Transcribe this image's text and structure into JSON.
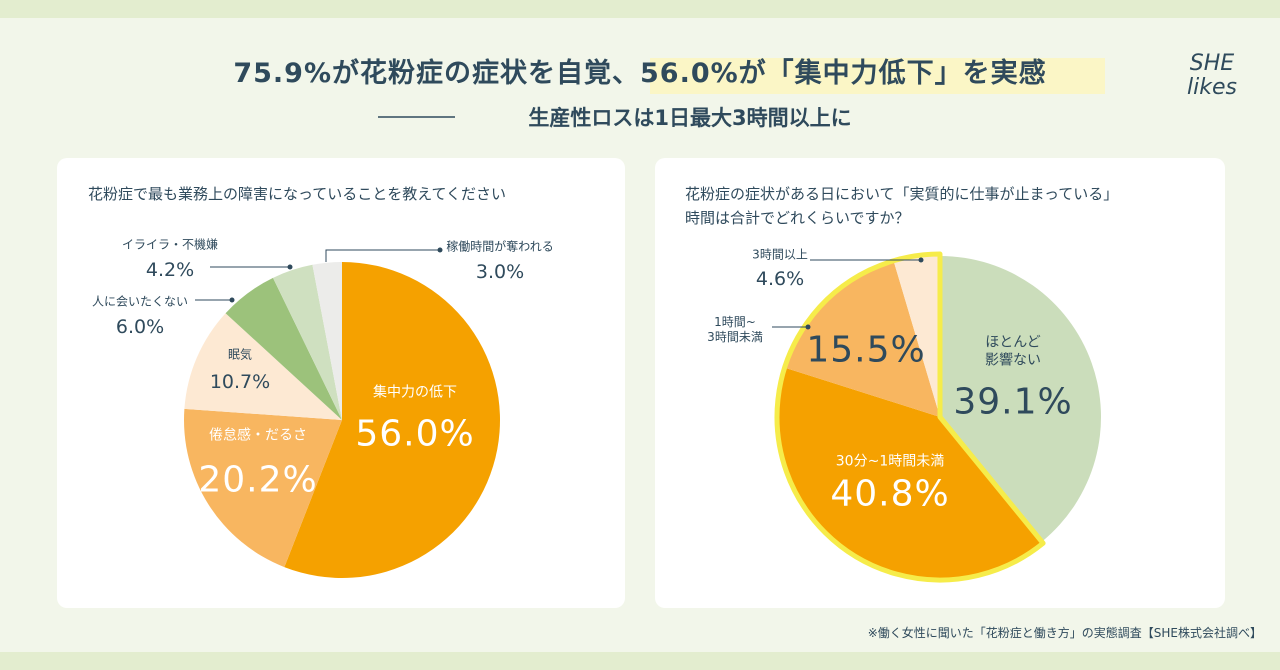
{
  "header": {
    "title": "75.9%が花粉症の症状を自覚、56.0%が「集中力低下」を実感",
    "subtitle": "生産性ロスは1日最大3時間以上に",
    "logo": "SHE\nlikes"
  },
  "chart_data": [
    {
      "type": "pie",
      "title": "花粉症で最も業務上の障害になっていることを教えてください",
      "categories": [
        "集中力の低下",
        "倦怠感・だるさ",
        "眠気",
        "人に会いたくない",
        "イライラ・不機嫌",
        "稼働時間が奪われる"
      ],
      "values": [
        56.0,
        20.2,
        10.7,
        6.0,
        4.2,
        3.0
      ],
      "value_labels": [
        "56.0%",
        "20.2%",
        "10.7%",
        "6.0%",
        "4.2%",
        "3.0%"
      ],
      "colors": [
        "#f5a100",
        "#f8b660",
        "#fde9d3",
        "#9cc27b",
        "#cfe0c0",
        "#ececea"
      ]
    },
    {
      "type": "pie",
      "title": "花粉症の症状がある日において「実質的に仕事が止まっている」\n時間は合計でどれくらいですか？",
      "categories": [
        "ほとんど\n影響ない",
        "30分~1時間未満",
        "1時間~\n3時間未満",
        "3時間以上"
      ],
      "values": [
        39.1,
        40.8,
        15.5,
        4.6
      ],
      "value_labels": [
        "39.1%",
        "40.8%",
        "15.5%",
        "4.6%"
      ],
      "colors": [
        "#cbddbb",
        "#f5a100",
        "#f8b660",
        "#fde9d3"
      ]
    }
  ],
  "footnote": "※働く女性に聞いた「花粉症と働き方」の実態調査【SHE株式会社調べ】"
}
